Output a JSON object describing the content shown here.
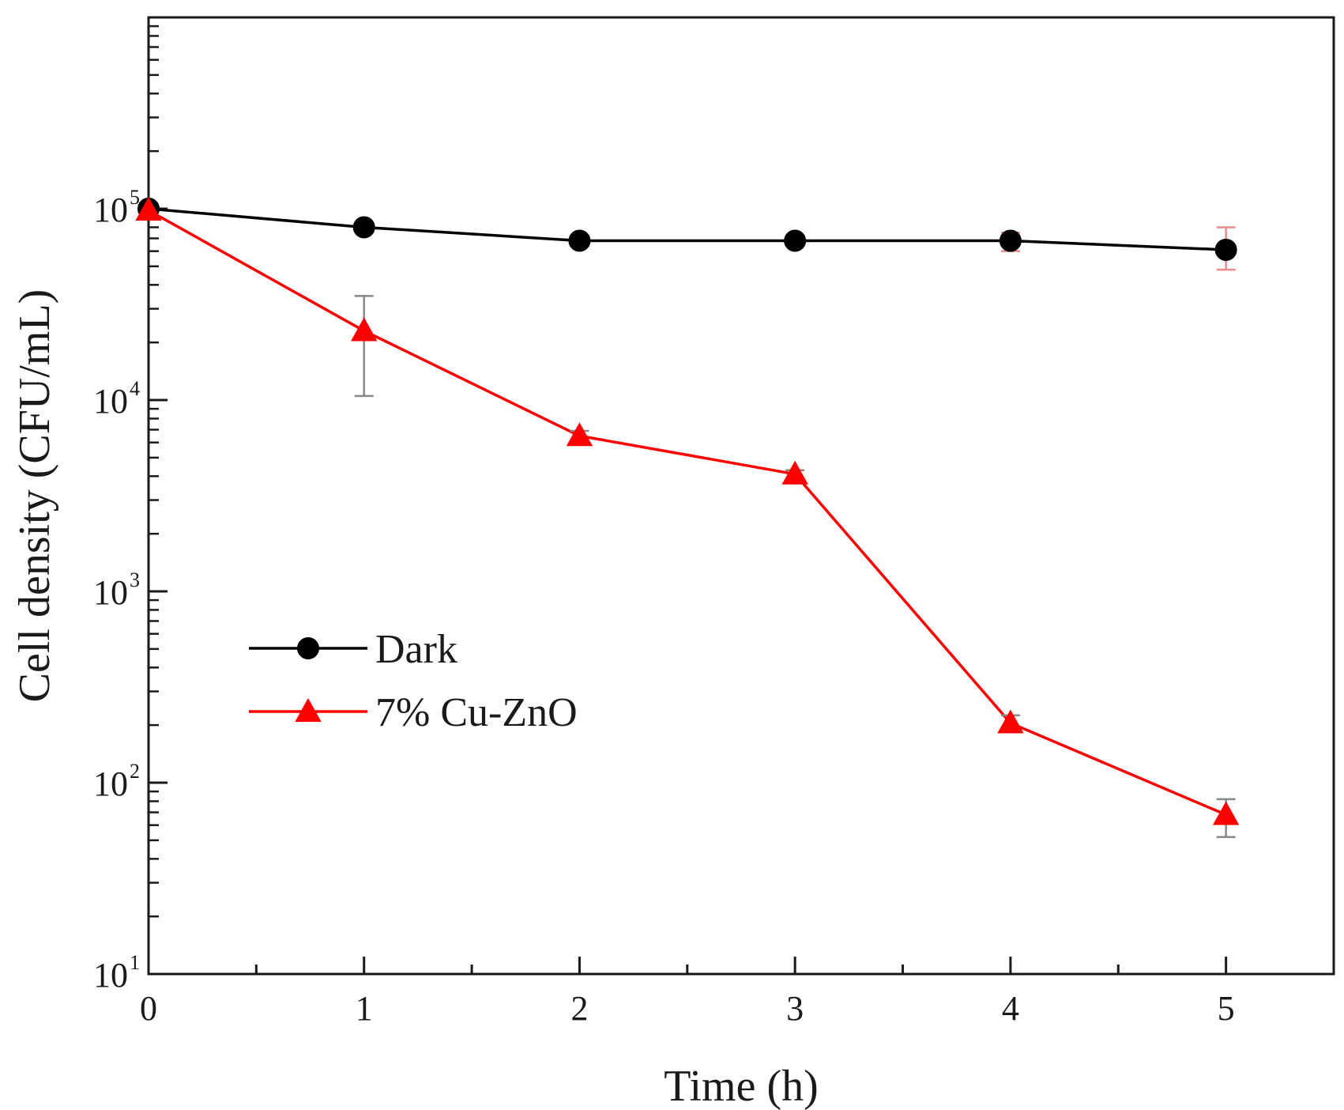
{
  "chart_data": {
    "type": "line",
    "title": "",
    "xlabel": "Time (h)",
    "ylabel": "Cell density (CFU/mL)",
    "xlim": [
      0,
      5.5
    ],
    "ylim": [
      10,
      1000000
    ],
    "yscale": "log",
    "grid": false,
    "legend_position": "middle-left",
    "x_ticks": [
      0,
      1,
      2,
      3,
      4,
      5
    ],
    "x_tick_labels": [
      "0",
      "1",
      "2",
      "3",
      "4",
      "5"
    ],
    "y_ticks": [
      {
        "value": 10,
        "base": "10",
        "exp": "1"
      },
      {
        "value": 100,
        "base": "10",
        "exp": "2"
      },
      {
        "value": 1000,
        "base": "10",
        "exp": "3"
      },
      {
        "value": 10000,
        "base": "10",
        "exp": "4"
      },
      {
        "value": 100000,
        "base": "10",
        "exp": "5"
      }
    ],
    "series": [
      {
        "name": "Dark",
        "color": "#000000",
        "marker": "circle",
        "x": [
          0,
          1,
          2,
          3,
          4,
          5
        ],
        "values": [
          100000,
          80000,
          68000,
          68000,
          68000,
          61000
        ],
        "error": [
          [
            100000,
            100000
          ],
          [
            80000,
            80000
          ],
          [
            68000,
            68000
          ],
          [
            68000,
            68000
          ],
          [
            60000,
            75000
          ],
          [
            48000,
            80000
          ]
        ],
        "error_color": "#e88b8b"
      },
      {
        "name": "7% Cu-ZnO",
        "color": "#ff0000",
        "marker": "triangle",
        "x": [
          0,
          1,
          2,
          3,
          4,
          5
        ],
        "values": [
          98000,
          23000,
          6500,
          4100,
          205,
          68
        ],
        "error": [
          [
            98000,
            98000
          ],
          [
            10500,
            35000
          ],
          [
            6200,
            6900
          ],
          [
            3900,
            4300
          ],
          [
            185,
            225
          ],
          [
            52,
            82
          ]
        ],
        "error_color": "#888888"
      }
    ]
  }
}
